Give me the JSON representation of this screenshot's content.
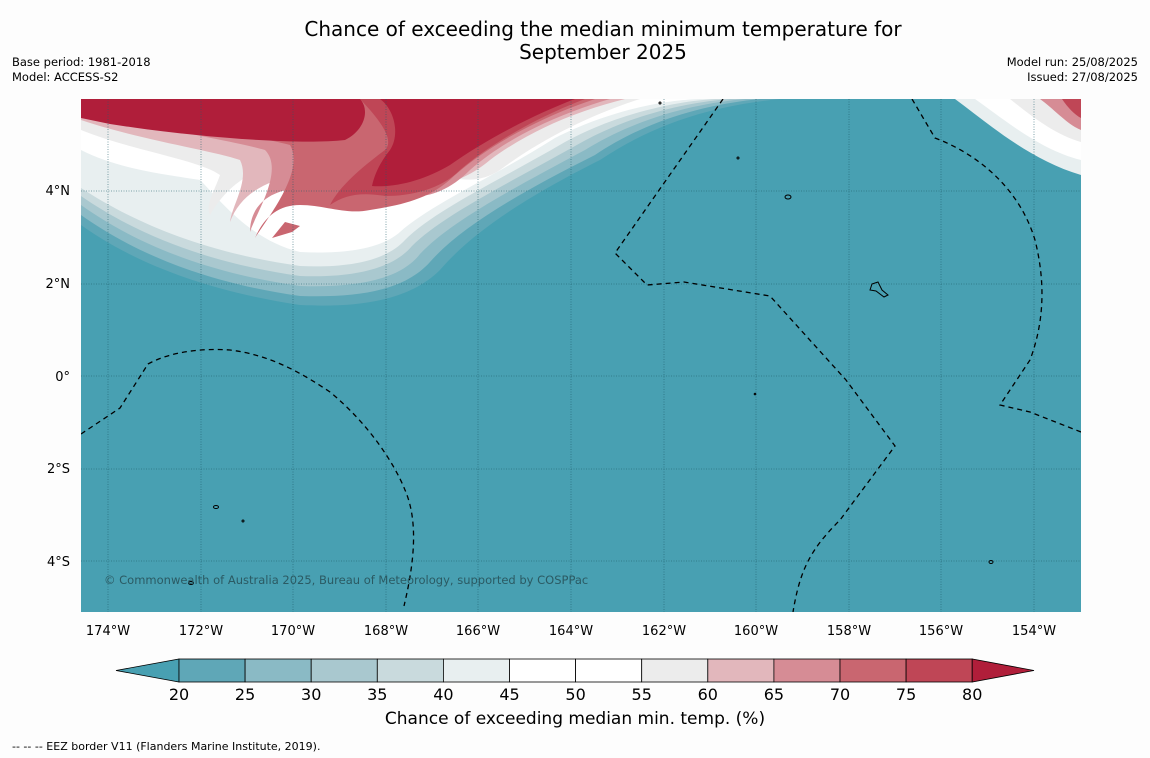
{
  "title_line1": "Chance of exceeding the median minimum temperature for",
  "title_line2": "September 2025",
  "base_period": "Base period: 1981-2018",
  "model": "Model: ACCESS-S2",
  "model_run": "Model run: 25/08/2025",
  "issued": "Issued: 27/08/2025",
  "copyright": "© Commonwealth of Australia 2025, Bureau of Meteorology, supported by COSPPac",
  "lon_labels": [
    "174°W",
    "172°W",
    "170°W",
    "168°W",
    "166°W",
    "164°W",
    "162°W",
    "160°W",
    "158°W",
    "156°W",
    "154°W"
  ],
  "lat_labels": [
    "4°N",
    "2°N",
    "0°",
    "2°S",
    "4°S"
  ],
  "colorbar": {
    "ticks": [
      "20",
      "25",
      "30",
      "35",
      "40",
      "45",
      "50",
      "55",
      "60",
      "65",
      "70",
      "75",
      "80"
    ],
    "colors": [
      "#5fa7b7",
      "#8abac5",
      "#a9c8cf",
      "#c9dadd",
      "#e8eff0",
      "#ffffff",
      "#ffffff",
      "#ececec",
      "#e2b7bc",
      "#d68c95",
      "#c96670",
      "#bf4656"
    ],
    "under_color": "#48a0b2",
    "over_color": "#b01e3a",
    "label": "Chance of exceeding median min. temp. (%)"
  },
  "footnote": "--  --  -- EEZ border V11 (Flanders Marine Institute, 2019)."
}
